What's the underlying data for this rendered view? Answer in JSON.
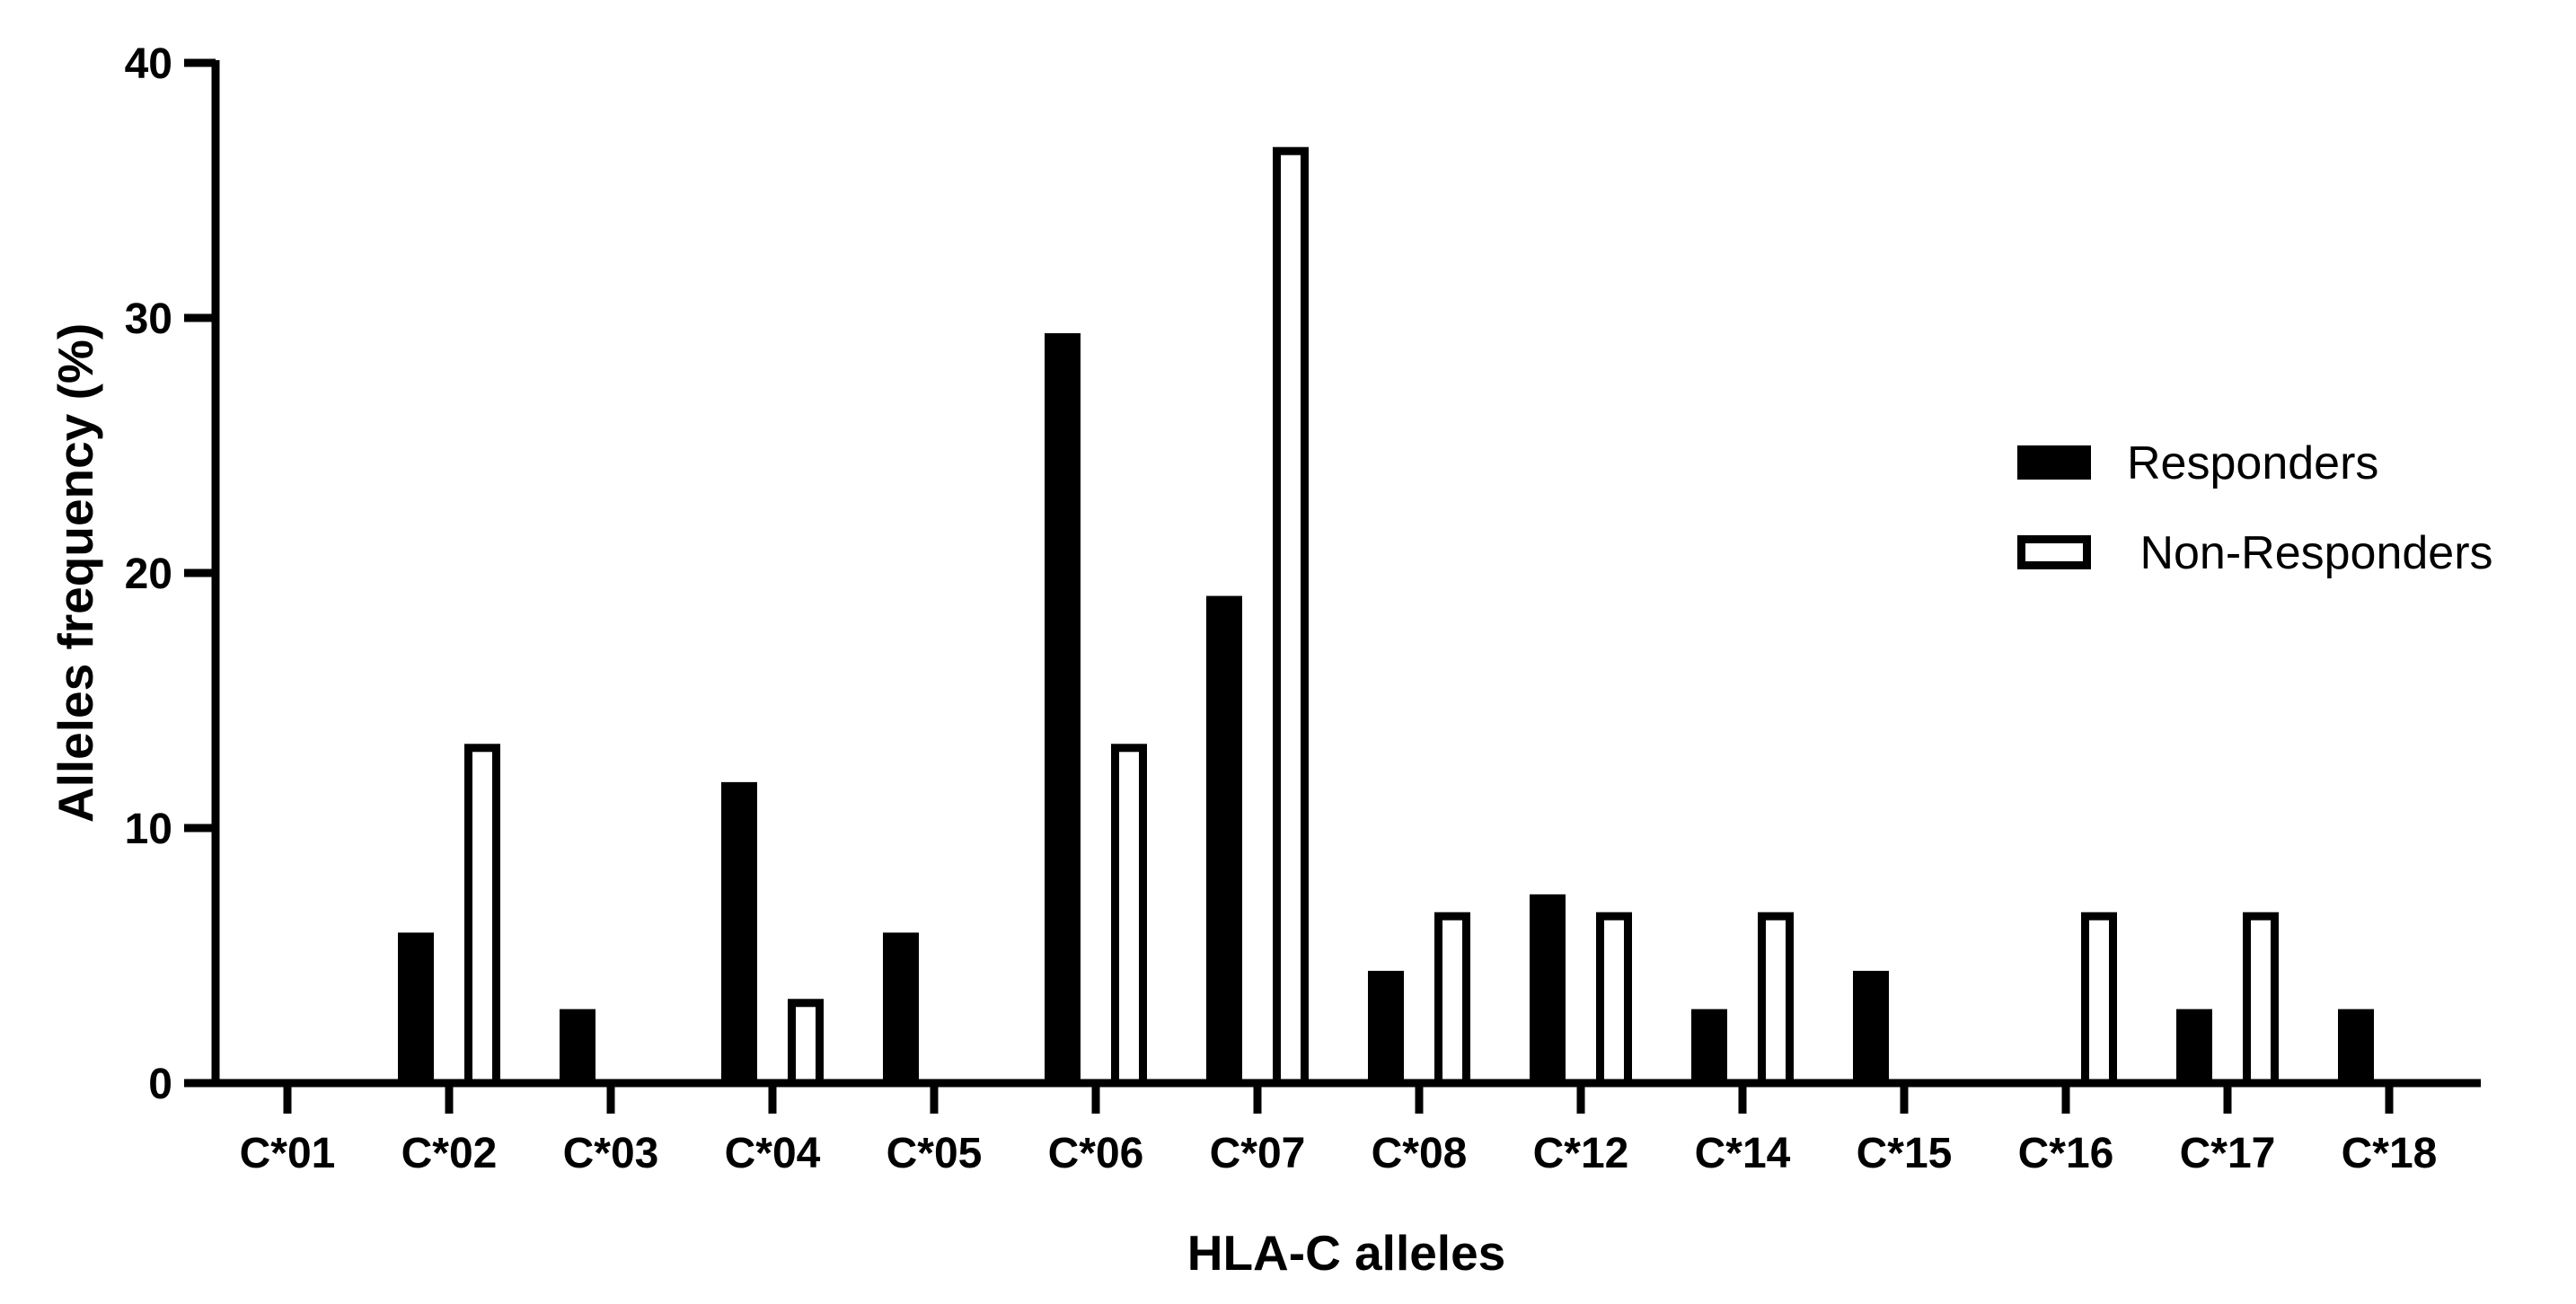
{
  "chart_data": {
    "type": "bar",
    "xlabel": "HLA-C alleles",
    "ylabel": "Alleles frequency (%)",
    "ylim": [
      0,
      40
    ],
    "yticks": [
      "0",
      "10",
      "20",
      "30",
      "40"
    ],
    "categories": [
      "C*01",
      "C*02",
      "C*03",
      "C*04",
      "C*05",
      "C*06",
      "C*07",
      "C*08",
      "C*12",
      "C*14",
      "C*15",
      "C*16",
      "C*17",
      "C*18"
    ],
    "series": [
      {
        "name": "Responders",
        "style": "filled",
        "color": "#000000",
        "values": [
          0,
          5.9,
          2.9,
          11.8,
          5.9,
          29.4,
          19.1,
          4.4,
          7.4,
          2.9,
          4.4,
          0,
          2.9,
          2.9
        ]
      },
      {
        "name": " Non-Responders",
        "style": "outline",
        "color": "#000000",
        "values": [
          0,
          13.3,
          0,
          3.3,
          0,
          13.3,
          36.7,
          6.7,
          6.7,
          6.7,
          0,
          6.7,
          6.7,
          0
        ]
      }
    ],
    "grid": false,
    "legend_position": "right"
  }
}
